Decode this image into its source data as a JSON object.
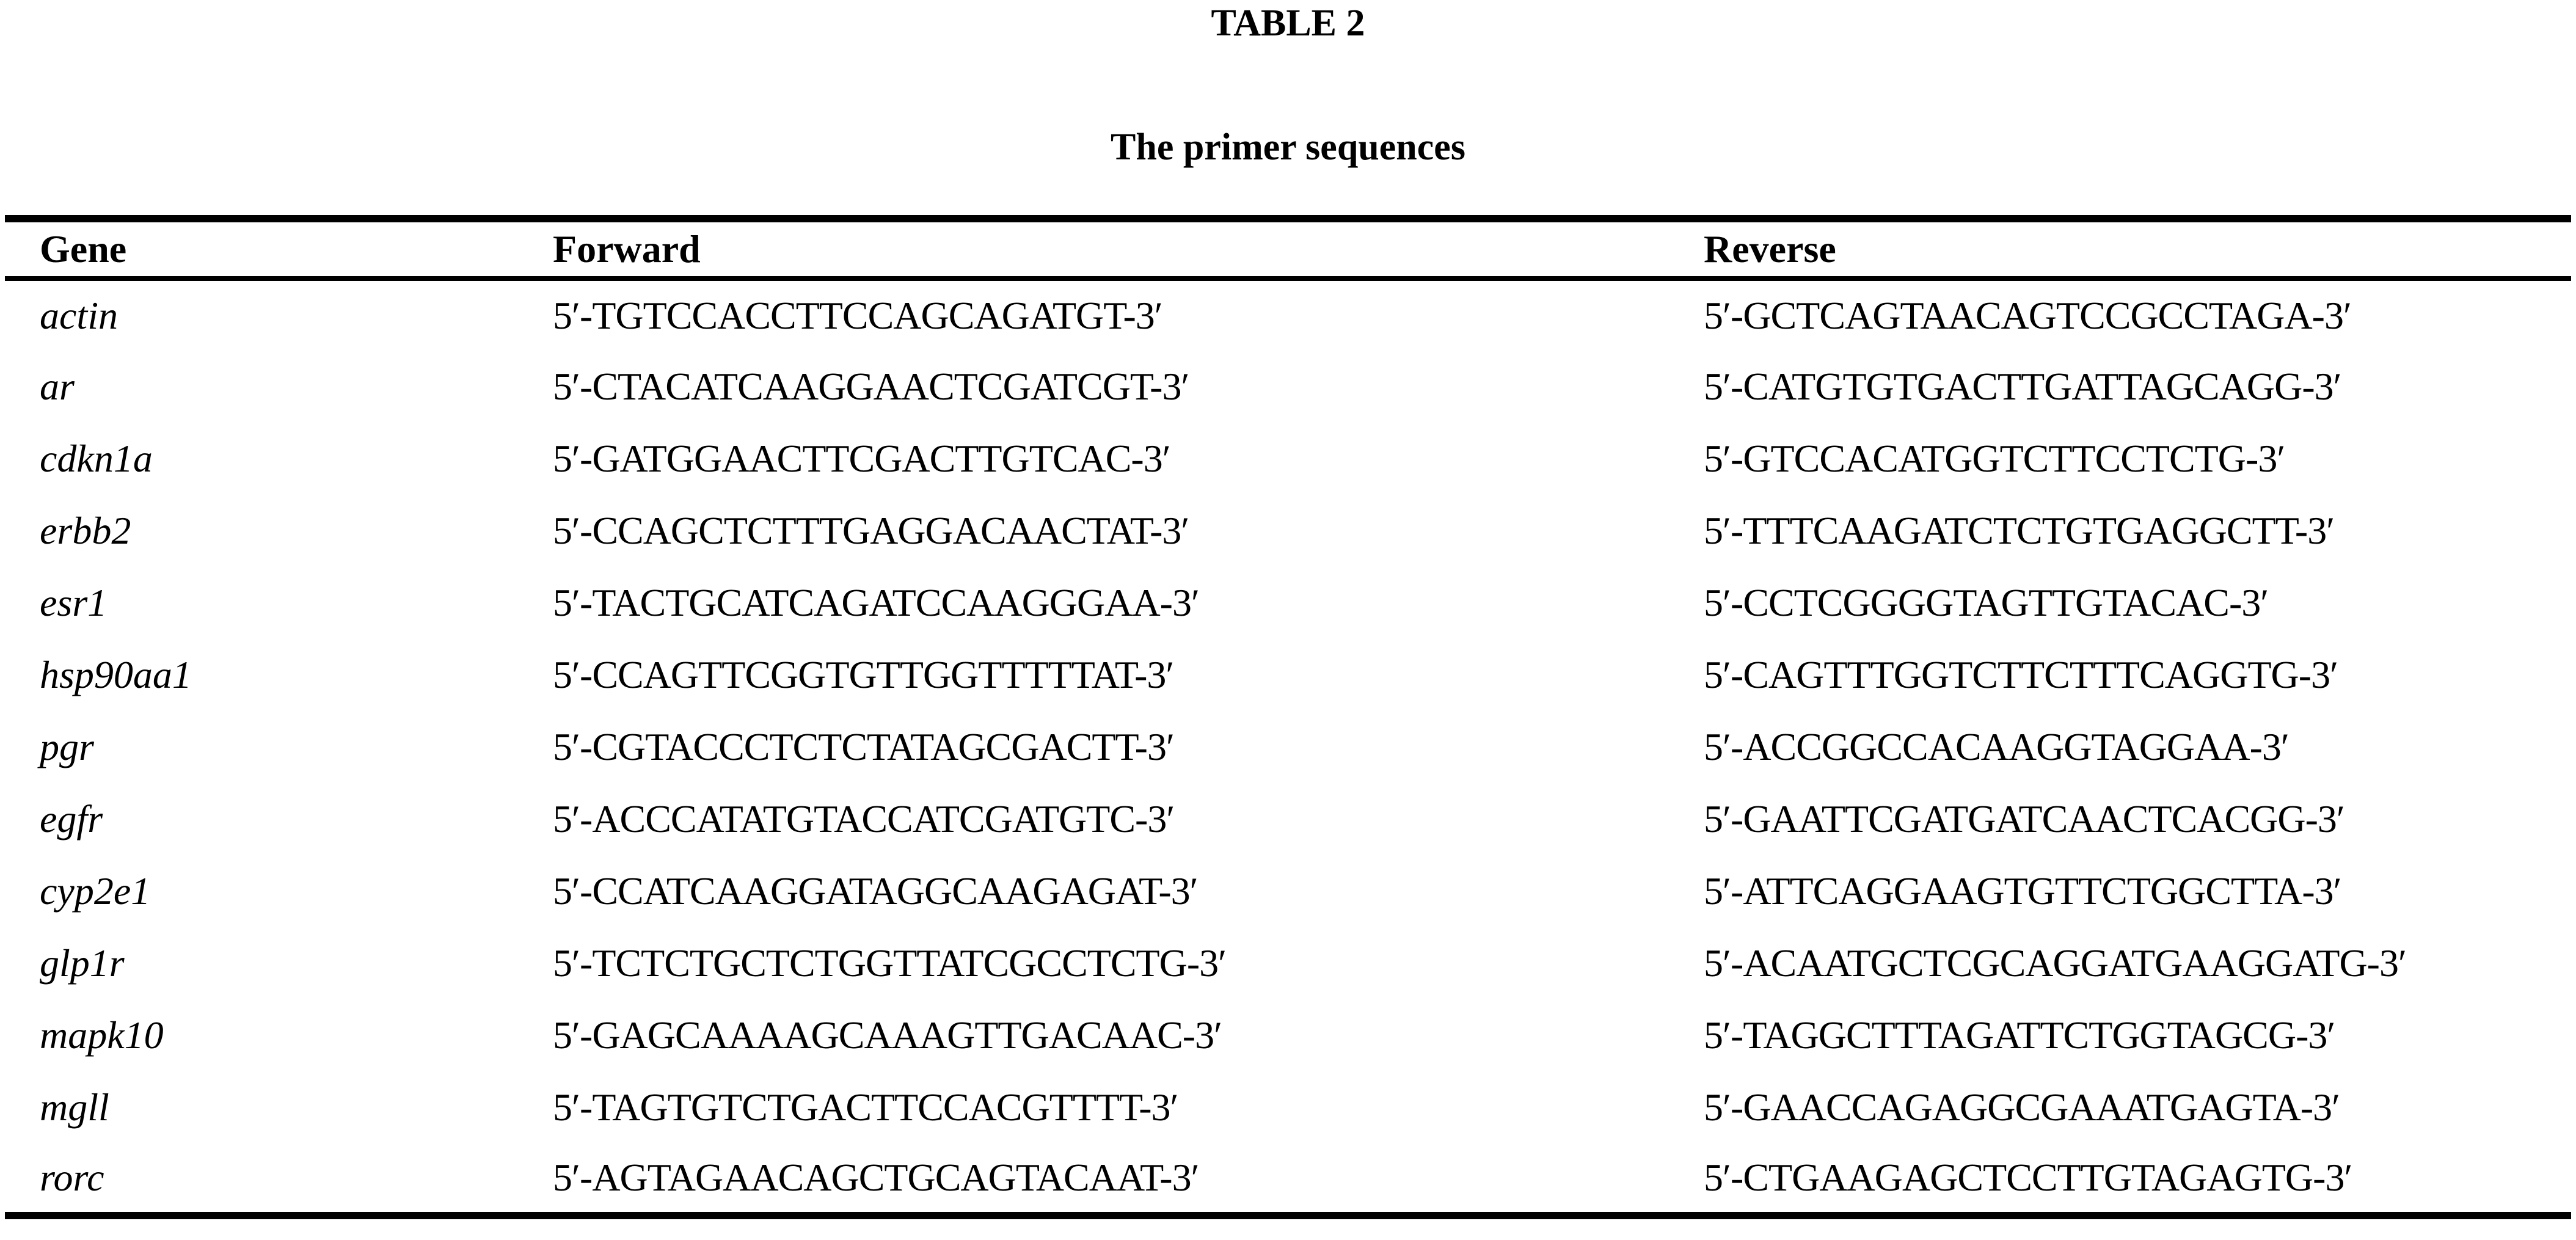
{
  "table": {
    "label": "TABLE 2",
    "caption": "The primer sequences",
    "columns": [
      "Gene",
      "Forward",
      "Reverse"
    ],
    "rows": [
      {
        "gene": "actin",
        "forward": "5′-TGTCCACCTTCCAGCAGATGT-3′",
        "reverse": "5′-GCTCAGTAACAGTCCGCCTAGA-3′"
      },
      {
        "gene": "ar",
        "forward": "5′-CTACATCAAGGAACTCGATCGT-3′",
        "reverse": "5′-CATGTGTGACTTGATTAGCAGG-3′"
      },
      {
        "gene": "cdkn1a",
        "forward": "5′-GATGGAACTTCGACTTGTCAC-3′",
        "reverse": "5′-GTCCACATGGTCTTCCTCTG-3′"
      },
      {
        "gene": "erbb2",
        "forward": "5′-CCAGCTCTTTGAGGACAACTAT-3′",
        "reverse": "5′-TTTCAAGATCTCTGTGAGGCTT-3′"
      },
      {
        "gene": "esr1",
        "forward": "5′-TACTGCATCAGATCCAAGGGAA-3′",
        "reverse": "5′-CCTCGGGGTAGTTGTACAC-3′"
      },
      {
        "gene": "hsp90aa1",
        "forward": "5′-CCAGTTCGGTGTTGGTTTTTAT-3′",
        "reverse": "5′-CAGTTTGGTCTTCTTTCAGGTG-3′"
      },
      {
        "gene": "pgr",
        "forward": "5′-CGTACCCTCTCTATAGCGACTT-3′",
        "reverse": "5′-ACCGGCCACAAGGTAGGAA-3′"
      },
      {
        "gene": "egfr",
        "forward": "5′-ACCCATATGTACCATCGATGTC-3′",
        "reverse": "5′-GAATTCGATGATCAACTCACGG-3′"
      },
      {
        "gene": "cyp2e1",
        "forward": "5′-CCATCAAGGATAGGCAAGAGAT-3′",
        "reverse": "5′-ATTCAGGAAGTGTTCTGGCTTA-3′"
      },
      {
        "gene": "glp1r",
        "forward": "5′-TCTCTGCTCTGGTTATCGCCTCTG-3′",
        "reverse": "5′-ACAATGCTCGCAGGATGAAGGATG-3′"
      },
      {
        "gene": "mapk10",
        "forward": "5′-GAGCAAAAGCAAAGTTGACAAC-3′",
        "reverse": "5′-TAGGCTTTAGATTCTGGTAGCG-3′"
      },
      {
        "gene": "mgll",
        "forward": "5′-TAGTGTCTGACTTCCACGTTTT-3′",
        "reverse": "5′-GAACCAGAGGCGAAATGAGTA-3′"
      },
      {
        "gene": "rorc",
        "forward": "5′-AGTAGAACAGCTGCAGTACAAT-3′",
        "reverse": "5′-CTGAAGAGCTCCTTGTAGAGTG-3′"
      }
    ]
  },
  "colors": {
    "background": "#ffffff",
    "text": "#000000",
    "rule": "#000000"
  }
}
